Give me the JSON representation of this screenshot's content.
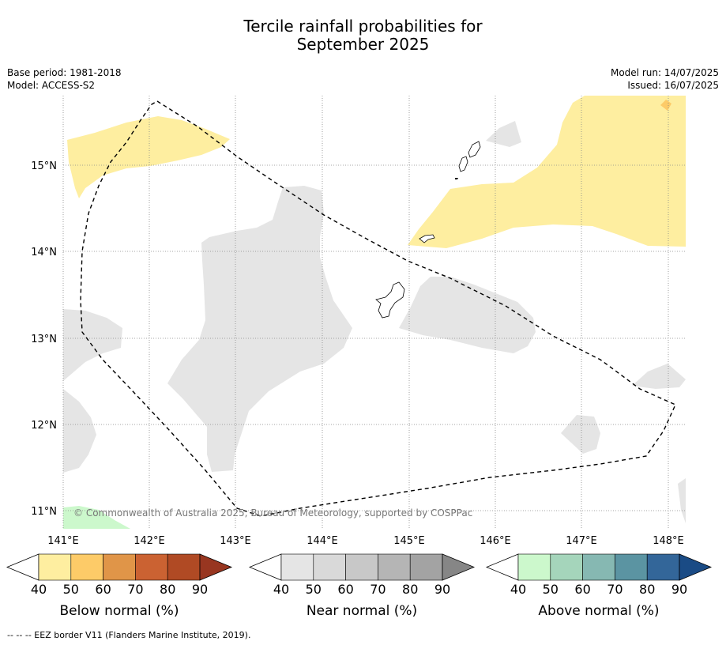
{
  "title_line1": "Tercile rainfall probabilities for",
  "title_line2": "September 2025",
  "base_period": "Base period: 1981-2018",
  "model": "Model: ACCESS-S2",
  "model_run": "Model run: 14/07/2025",
  "issued": "Issued: 16/07/2025",
  "copyright": "© Commonwealth of Australia 2025, Bureau of Meteorology, supported by COSPPac",
  "footnote": "--  --  -- EEZ border V11 (Flanders Marine Institute, 2019).",
  "lat_labels": [
    "15°N",
    "14°N",
    "13°N",
    "12°N",
    "11°N"
  ],
  "lon_labels": [
    "141°E",
    "142°E",
    "143°E",
    "144°E",
    "145°E",
    "146°E",
    "147°E",
    "148°E"
  ],
  "colorbars": [
    {
      "label": "Below normal (%)",
      "ticks": [
        "40",
        "50",
        "60",
        "70",
        "80",
        "90"
      ],
      "colors": [
        "#ffffff",
        "#feeea0",
        "#fdcb68",
        "#e09548",
        "#cb6232",
        "#b04a24",
        "#983620"
      ]
    },
    {
      "label": "Near normal (%)",
      "ticks": [
        "40",
        "50",
        "60",
        "70",
        "80",
        "90"
      ],
      "colors": [
        "#ffffff",
        "#e5e5e5",
        "#d9d9d9",
        "#c8c8c8",
        "#b5b5b5",
        "#a3a3a3",
        "#868686"
      ]
    },
    {
      "label": "Above normal (%)",
      "ticks": [
        "40",
        "50",
        "60",
        "70",
        "80",
        "90"
      ],
      "colors": [
        "#ffffff",
        "#ccf8cc",
        "#a5d5bb",
        "#86b8b2",
        "#5b94a2",
        "#336699",
        "#1a4b85"
      ]
    }
  ]
}
